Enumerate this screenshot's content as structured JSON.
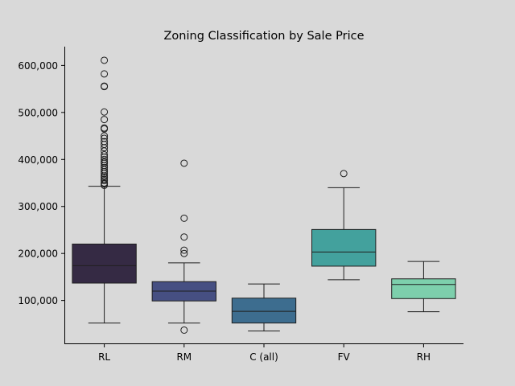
{
  "chart_data": {
    "type": "box",
    "title": "Zoning Classification by Sale Price",
    "xlabel": "",
    "ylabel": "",
    "ylim": [
      7000,
      640000
    ],
    "yticks": [
      100000,
      200000,
      300000,
      400000,
      500000,
      600000
    ],
    "ytick_labels": [
      "100,000",
      "200,000",
      "300,000",
      "400,000",
      "500,000",
      "600,000"
    ],
    "categories": [
      "RL",
      "RM",
      "C (all)",
      "FV",
      "RH"
    ],
    "grid": false,
    "legend": "none",
    "boxes": [
      {
        "category": "RL",
        "color": "#352a44",
        "whisker_low": 52000,
        "q1": 137000,
        "median": 174000,
        "q3": 220000,
        "whisker_high": 343000,
        "outliers": [
          345000,
          348000,
          350000,
          355000,
          358000,
          362000,
          365000,
          370000,
          374000,
          378000,
          383000,
          387000,
          392000,
          395000,
          400000,
          405000,
          410000,
          418000,
          425000,
          432000,
          438000,
          445000,
          450000,
          465000,
          467000,
          485000,
          501000,
          555000,
          556000,
          582000,
          611000
        ]
      },
      {
        "category": "RM",
        "color": "#464f82",
        "whisker_low": 52000,
        "q1": 99000,
        "median": 120000,
        "q3": 140000,
        "whisker_high": 180000,
        "outliers": [
          37000,
          200000,
          207000,
          235000,
          275000,
          392000
        ]
      },
      {
        "category": "C (all)",
        "color": "#3d6d8f",
        "whisker_low": 35000,
        "q1": 52000,
        "median": 77000,
        "q3": 105000,
        "whisker_high": 135000,
        "outliers": []
      },
      {
        "category": "FV",
        "color": "#43a19d",
        "whisker_low": 144000,
        "q1": 173000,
        "median": 203000,
        "q3": 251000,
        "whisker_high": 340000,
        "outliers": [
          370000
        ]
      },
      {
        "category": "RH",
        "color": "#7dcfac",
        "whisker_low": 76000,
        "q1": 104000,
        "median": 134000,
        "q3": 146000,
        "whisker_high": 183000,
        "outliers": []
      }
    ]
  }
}
